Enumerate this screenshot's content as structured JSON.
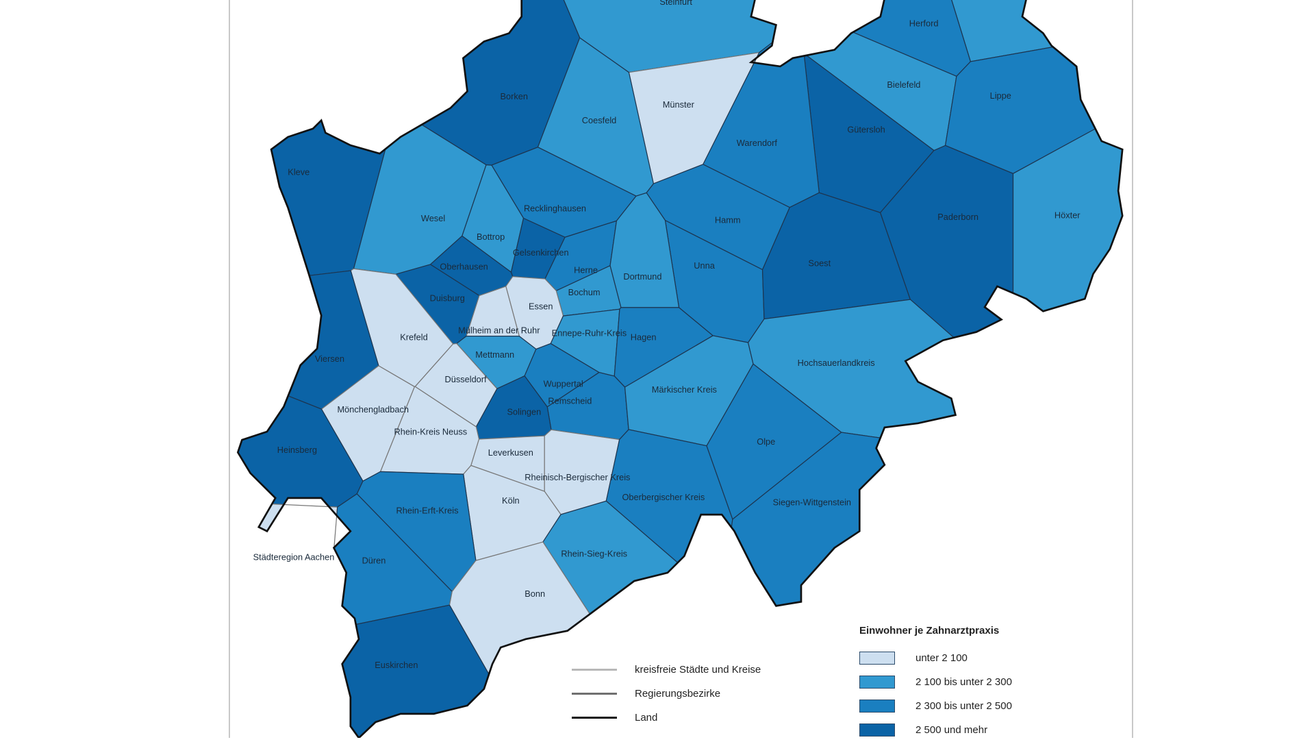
{
  "legend": {
    "title": "Einwohner je Zahnarztpraxis",
    "classes": [
      {
        "label": "unter 2 100",
        "color": "#cddff0"
      },
      {
        "label": "2 100 bis unter 2 300",
        "color": "#3199d0"
      },
      {
        "label": "2 300 bis unter 2 500",
        "color": "#1a7fc0"
      },
      {
        "label": "2 500 und mehr",
        "color": "#0b63a6"
      }
    ],
    "boundaries": [
      {
        "label": "kreisfreie Städte und Kreise",
        "color": "#b8b8b8"
      },
      {
        "label": "Regierungsbezirke",
        "color": "#707070"
      },
      {
        "label": "Land",
        "color": "#111111"
      }
    ]
  },
  "districts": [
    {
      "name": "Steinfurt",
      "class": 1
    },
    {
      "name": "",
      "class": 1
    },
    {
      "name": "Herford",
      "class": 2
    },
    {
      "name": "Borken",
      "class": 3
    },
    {
      "name": "Bielefeld",
      "class": 1
    },
    {
      "name": "Lippe",
      "class": 2
    },
    {
      "name": "Gütersloh",
      "class": 3
    },
    {
      "name": "Münster",
      "class": 0
    },
    {
      "name": "Coesfeld",
      "class": 1
    },
    {
      "name": "Warendorf",
      "class": 2
    },
    {
      "name": "Kleve",
      "class": 3
    },
    {
      "name": "Wesel",
      "class": 1
    },
    {
      "name": "Recklinghausen",
      "class": 2
    },
    {
      "name": "Bottrop",
      "class": 1
    },
    {
      "name": "Gelsenkirchen",
      "class": 3
    },
    {
      "name": "Herne",
      "class": 2
    },
    {
      "name": "Oberhausen",
      "class": 3
    },
    {
      "name": "Duisburg",
      "class": 3
    },
    {
      "name": "Hamm",
      "class": 2
    },
    {
      "name": "Unna",
      "class": 2
    },
    {
      "name": "Soest",
      "class": 3
    },
    {
      "name": "Paderborn",
      "class": 3
    },
    {
      "name": "Höxter",
      "class": 1
    },
    {
      "name": "Dortmund",
      "class": 1
    },
    {
      "name": "Bochum",
      "class": 1
    },
    {
      "name": "Essen",
      "class": 0
    },
    {
      "name": "Mülheim an der Ruhr",
      "class": 0
    },
    {
      "name": "Krefeld",
      "class": 0
    },
    {
      "name": "Viersen",
      "class": 3
    },
    {
      "name": "Ennepe-Ruhr-Kreis",
      "class": 1
    },
    {
      "name": "Hagen",
      "class": 2
    },
    {
      "name": "Mettmann",
      "class": 1
    },
    {
      "name": "Düsseldorf",
      "class": 0
    },
    {
      "name": "Wuppertal",
      "class": 2
    },
    {
      "name": "Remscheid",
      "class": 2
    },
    {
      "name": "Solingen",
      "class": 3
    },
    {
      "name": "Märkischer Kreis",
      "class": 1
    },
    {
      "name": "Hochsauerlandkreis",
      "class": 1
    },
    {
      "name": "Mönchengladbach",
      "class": 0
    },
    {
      "name": "Rhein-Kreis Neuss",
      "class": 0
    },
    {
      "name": "Heinsberg",
      "class": 3
    },
    {
      "name": "Leverkusen",
      "class": 0
    },
    {
      "name": "Rheinisch-Bergischer Kreis",
      "class": 0
    },
    {
      "name": "Oberbergischer Kreis",
      "class": 2
    },
    {
      "name": "Olpe",
      "class": 2
    },
    {
      "name": "Siegen-Wittgenstein",
      "class": 2
    },
    {
      "name": "Köln",
      "class": 0
    },
    {
      "name": "Rhein-Erft-Kreis",
      "class": 2
    },
    {
      "name": "Städteregion Aachen",
      "class": 0
    },
    {
      "name": "Düren",
      "class": 2
    },
    {
      "name": "Rhein-Sieg-Kreis",
      "class": 1
    },
    {
      "name": "Bonn",
      "class": 0
    },
    {
      "name": "Euskirchen",
      "class": 3
    }
  ]
}
